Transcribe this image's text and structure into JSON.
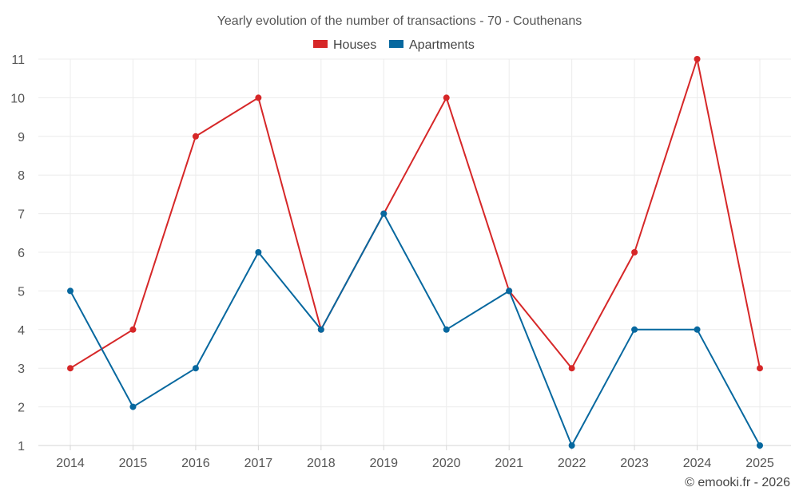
{
  "chart_data": {
    "type": "line",
    "title": "Yearly evolution of the number of transactions - 70 - Couthenans",
    "categories": [
      "2014",
      "2015",
      "2016",
      "2017",
      "2018",
      "2019",
      "2020",
      "2021",
      "2022",
      "2023",
      "2024",
      "2025"
    ],
    "series": [
      {
        "name": "Houses",
        "color": "#d62728",
        "values": [
          3,
          4,
          9,
          10,
          4,
          7,
          10,
          5,
          3,
          6,
          11,
          3
        ]
      },
      {
        "name": "Apartments",
        "color": "#07689f",
        "values": [
          5,
          2,
          3,
          6,
          4,
          7,
          4,
          5,
          1,
          4,
          4,
          1
        ]
      }
    ],
    "yticks": [
      "1",
      "2",
      "3",
      "4",
      "5",
      "6",
      "7",
      "8",
      "9",
      "10",
      "11"
    ],
    "ylim": [
      1,
      11
    ],
    "xlabel": "",
    "ylabel": "",
    "grid": true,
    "legend": "top-center"
  },
  "credit": "© emooki.fr - 2026"
}
